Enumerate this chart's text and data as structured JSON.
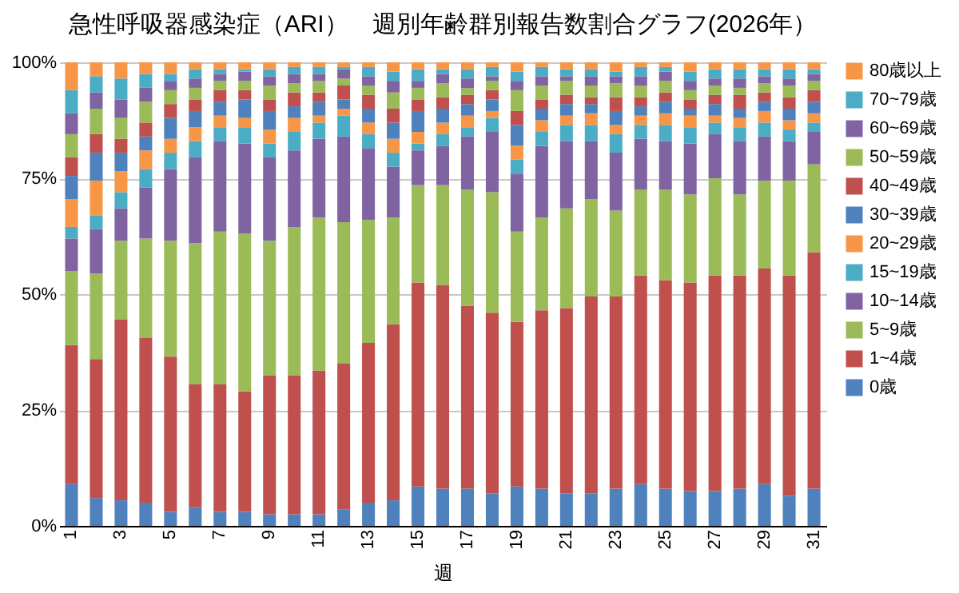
{
  "chart_data": {
    "type": "bar",
    "title": "急性呼吸器感染症（ARI）　週別年齢群別報告数割合グラフ(2026年）",
    "xlabel": "週",
    "categories": [
      "1",
      null,
      "3",
      null,
      "5",
      null,
      "7",
      null,
      "9",
      null,
      "11",
      null,
      "13",
      null,
      "15",
      null,
      "17",
      null,
      "19",
      null,
      "21",
      null,
      "23",
      null,
      "25",
      null,
      "27",
      null,
      "29",
      null,
      "31"
    ],
    "stacked": true,
    "ylim": [
      0,
      100
    ],
    "yticks": [
      {
        "value": 0,
        "label": "0%"
      },
      {
        "value": 25,
        "label": "25%"
      },
      {
        "value": 50,
        "label": "50%"
      },
      {
        "value": 75,
        "label": "75%"
      },
      {
        "value": 100,
        "label": "100%"
      }
    ],
    "grid": "y",
    "legend": "right",
    "series": [
      {
        "name": "0歳",
        "color": "#4f81bd",
        "values": [
          9,
          6,
          5.5,
          5,
          3,
          4,
          3,
          3,
          2.5,
          2.5,
          2.5,
          3.5,
          5,
          5.5,
          8.5,
          8,
          8,
          7,
          8.5,
          8,
          7,
          7,
          8,
          9,
          8,
          7.5,
          7.5,
          8,
          9,
          6.5,
          8
        ]
      },
      {
        "name": "1~4歳",
        "color": "#c0504d",
        "values": [
          30,
          30,
          39,
          35.5,
          33.5,
          26.5,
          27.5,
          26,
          30,
          30,
          31,
          31.5,
          34.5,
          38,
          44,
          44,
          39.5,
          39,
          35.5,
          38.5,
          40,
          42.5,
          41.5,
          45,
          45,
          45,
          46.5,
          46,
          46.5,
          47.5,
          51
        ]
      },
      {
        "name": "5~9歳",
        "color": "#9bbb59",
        "values": [
          16,
          18.5,
          17,
          21.5,
          25,
          30.5,
          33,
          34,
          29,
          32,
          33,
          30.5,
          26.5,
          23,
          21,
          21.5,
          25,
          26,
          19.5,
          20,
          21.5,
          21,
          18.5,
          18.5,
          19.5,
          19,
          21,
          17.5,
          19,
          20.5,
          19
        ]
      },
      {
        "name": "10~14歳",
        "color": "#8064a2",
        "values": [
          7,
          9.5,
          7,
          11,
          15.5,
          18.5,
          19.5,
          19.5,
          18,
          16.5,
          17,
          18.5,
          15.5,
          11,
          7.5,
          8.5,
          11.5,
          13,
          12.5,
          15.5,
          14.5,
          12.5,
          12.5,
          11,
          10.5,
          11,
          9.5,
          11.5,
          9.5,
          8.5,
          7
        ]
      },
      {
        "name": "15~19歳",
        "color": "#4bacc6",
        "values": [
          2.5,
          3,
          3.5,
          4,
          3.5,
          3.5,
          3,
          3.5,
          3,
          4,
          3.5,
          4.5,
          3,
          3,
          1.5,
          2.5,
          2,
          3,
          3,
          3,
          3.5,
          3.5,
          4,
          3,
          3.5,
          3.5,
          2.5,
          3,
          3,
          2.5,
          2
        ]
      },
      {
        "name": "20~29歳",
        "color": "#f79646",
        "values": [
          6,
          7.5,
          4.5,
          4,
          3,
          3,
          2.5,
          2,
          3,
          3,
          1.5,
          1.5,
          2.5,
          3,
          2.5,
          2.5,
          2.5,
          1.5,
          3,
          2.5,
          2,
          2.5,
          2,
          2,
          2.5,
          2.5,
          1.5,
          2,
          2.5,
          2,
          2
        ]
      },
      {
        "name": "30~39歳",
        "color": "#4f81bd",
        "values": [
          5,
          6,
          4,
          3,
          4.5,
          3.5,
          3,
          4,
          4,
          2.5,
          3,
          2,
          3,
          3.5,
          4.5,
          3,
          2.5,
          2.5,
          4.5,
          2.5,
          2.5,
          2,
          3,
          2,
          2.5,
          1.5,
          2.5,
          2,
          2,
          2.5,
          2.5
        ]
      },
      {
        "name": "40~49歳",
        "color": "#c0504d",
        "values": [
          4,
          4,
          3,
          3,
          3,
          2.5,
          2.5,
          2,
          2.5,
          3,
          2,
          3,
          3,
          3,
          2.5,
          2.5,
          2,
          2,
          3,
          2,
          2,
          1.5,
          3,
          2,
          2,
          2,
          2,
          3,
          2,
          2.5,
          2.5
        ]
      },
      {
        "name": "50~59歳",
        "color": "#9bbb59",
        "values": [
          5,
          5.5,
          4.5,
          4.5,
          3,
          2.5,
          2,
          2,
          3,
          2,
          2.5,
          1.5,
          2,
          3.5,
          2.5,
          3,
          1.5,
          2,
          4.5,
          3,
          3,
          2.5,
          3,
          2.5,
          2.5,
          2,
          2,
          1.5,
          2,
          2.5,
          2
        ]
      },
      {
        "name": "60~69歳",
        "color": "#8064a2",
        "values": [
          4.5,
          3.5,
          4,
          3,
          2,
          2,
          1.5,
          2,
          2,
          2,
          1.5,
          2,
          2,
          2.5,
          1.5,
          2,
          2,
          1,
          2,
          2,
          1,
          2,
          1.5,
          2,
          2,
          2,
          1.5,
          2,
          1.5,
          1.5,
          1.5
        ]
      },
      {
        "name": "70~79歳",
        "color": "#4bacc6",
        "values": [
          5,
          3.5,
          4.5,
          3,
          1.5,
          2,
          1,
          0.5,
          1.5,
          1.5,
          1.5,
          0.5,
          2,
          2,
          2.5,
          1,
          2,
          2,
          2,
          2,
          1.5,
          1.5,
          1,
          2,
          1,
          2,
          2,
          2,
          1.5,
          2,
          1
        ]
      },
      {
        "name": "80歳以上",
        "color": "#f79646",
        "values": [
          6,
          3,
          3.5,
          2.5,
          2.5,
          1.5,
          1.5,
          1.5,
          1.5,
          1,
          1,
          1,
          1,
          2,
          1.5,
          1.5,
          1.5,
          1,
          2,
          1,
          1.5,
          1.5,
          2,
          1,
          1,
          2,
          1.5,
          1.5,
          1.5,
          1.5,
          1.5
        ]
      }
    ]
  }
}
